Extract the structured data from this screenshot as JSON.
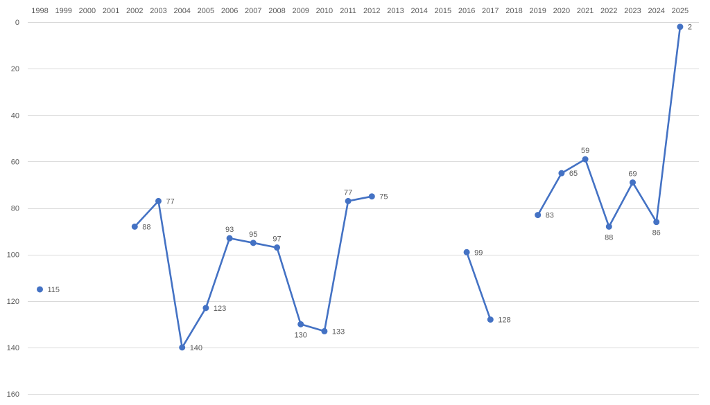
{
  "chart_data": {
    "type": "line",
    "categories": [
      "1998",
      "1999",
      "2000",
      "2001",
      "2002",
      "2003",
      "2004",
      "2005",
      "2006",
      "2007",
      "2008",
      "2009",
      "2010",
      "2011",
      "2012",
      "2013",
      "2014",
      "2015",
      "2016",
      "2017",
      "2018",
      "2019",
      "2020",
      "2021",
      "2022",
      "2023",
      "2024",
      "2025"
    ],
    "series": [
      {
        "color": "#4472c4",
        "values": [
          115,
          null,
          null,
          null,
          88,
          77,
          140,
          123,
          93,
          95,
          97,
          130,
          133,
          77,
          75,
          null,
          null,
          null,
          99,
          128,
          null,
          83,
          65,
          59,
          88,
          69,
          86,
          2
        ]
      }
    ],
    "y_ticks": [
      "0",
      "20",
      "40",
      "60",
      "80",
      "100",
      "120",
      "140",
      "160"
    ],
    "ylim": [
      0,
      160
    ],
    "y_reversed": true,
    "x_axis_position": "top",
    "grid": true,
    "title": "",
    "xlabel": "",
    "ylabel": "",
    "labels": [
      "115",
      "88",
      "77",
      "140",
      "123",
      "93",
      "95",
      "97",
      "130",
      "133",
      "77",
      "75",
      "99",
      "128",
      "83",
      "65",
      "59",
      "88",
      "69",
      "86",
      "2"
    ]
  }
}
